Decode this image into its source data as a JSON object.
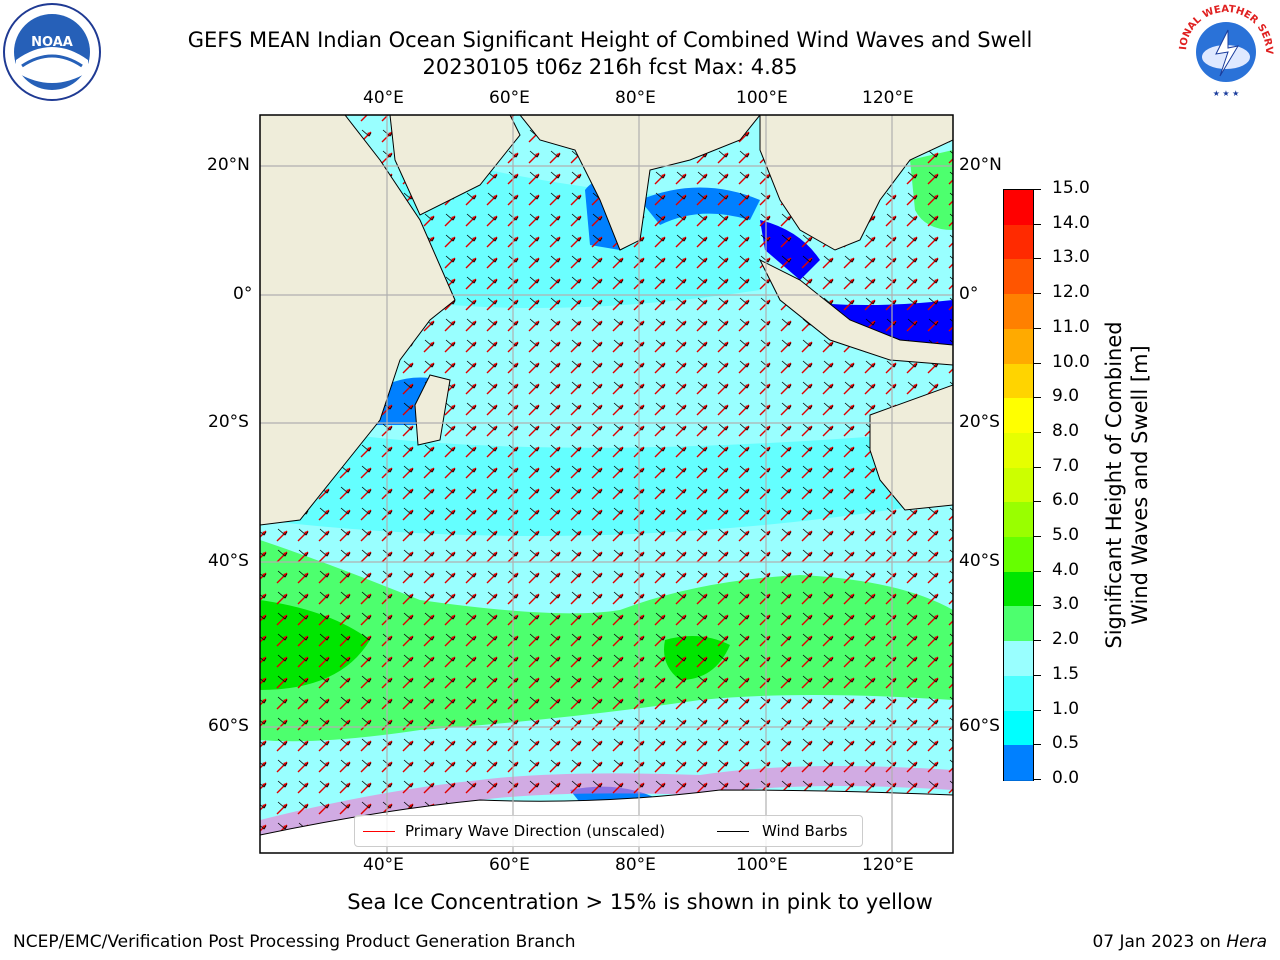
{
  "title_line1": "GEFS MEAN Indian Ocean Significant Height of Combined Wind Waves and Swell",
  "title_line2": "20230105 t06z 216h fcst   Max: 4.85",
  "lon_ticks": [
    "40°E",
    "60°E",
    "80°E",
    "100°E",
    "120°E"
  ],
  "lat_ticks_left": [
    "20°N",
    "0°",
    "20°S",
    "40°S",
    "60°S"
  ],
  "lat_ticks_right": [
    "20°N",
    "0°",
    "20°S",
    "40°S",
    "60°S"
  ],
  "colorbar": {
    "label_line1": "Significant Height of Combined",
    "label_line2": "Wind Waves and Swell [m]",
    "ticks": [
      "15.0",
      "14.0",
      "13.0",
      "12.0",
      "11.0",
      "10.0",
      "9.0",
      "8.0",
      "7.0",
      "6.0",
      "5.0",
      "4.0",
      "3.0",
      "2.0",
      "1.5",
      "1.0",
      "0.5",
      "0.0"
    ],
    "colors": [
      "#ff0000",
      "#ff2a00",
      "#ff5500",
      "#ff8000",
      "#ffaa00",
      "#ffd400",
      "#ffff00",
      "#e6ff00",
      "#ccff00",
      "#99ff00",
      "#66ff00",
      "#00e600",
      "#4dff6e",
      "#99ffff",
      "#4dffff",
      "#00ffff",
      "#0080ff",
      "#0000ff"
    ]
  },
  "legend": {
    "wave_label": "Primary Wave Direction (unscaled)",
    "wind_label": "Wind Barbs"
  },
  "map_colors": {
    "land": "#efedda",
    "ocean_low": "#99ffff",
    "ocean_mid": "#4dffff",
    "swell_high": "#4dff6e",
    "swell_peak": "#00e600",
    "shallow": "#0080ff",
    "deep_low": "#0000ff",
    "arrow": "#ff0000"
  },
  "caption": "Sea Ice Concentration > 15% is shown in pink to yellow",
  "footer_left": "NCEP/EMC/Verification Post Processing Product Generation Branch",
  "footer_right_date": "07 Jan 2023 on",
  "footer_right_host": "Hera",
  "logos": {
    "left": "NOAA",
    "right": "NATIONAL WEATHER SERVICE"
  }
}
